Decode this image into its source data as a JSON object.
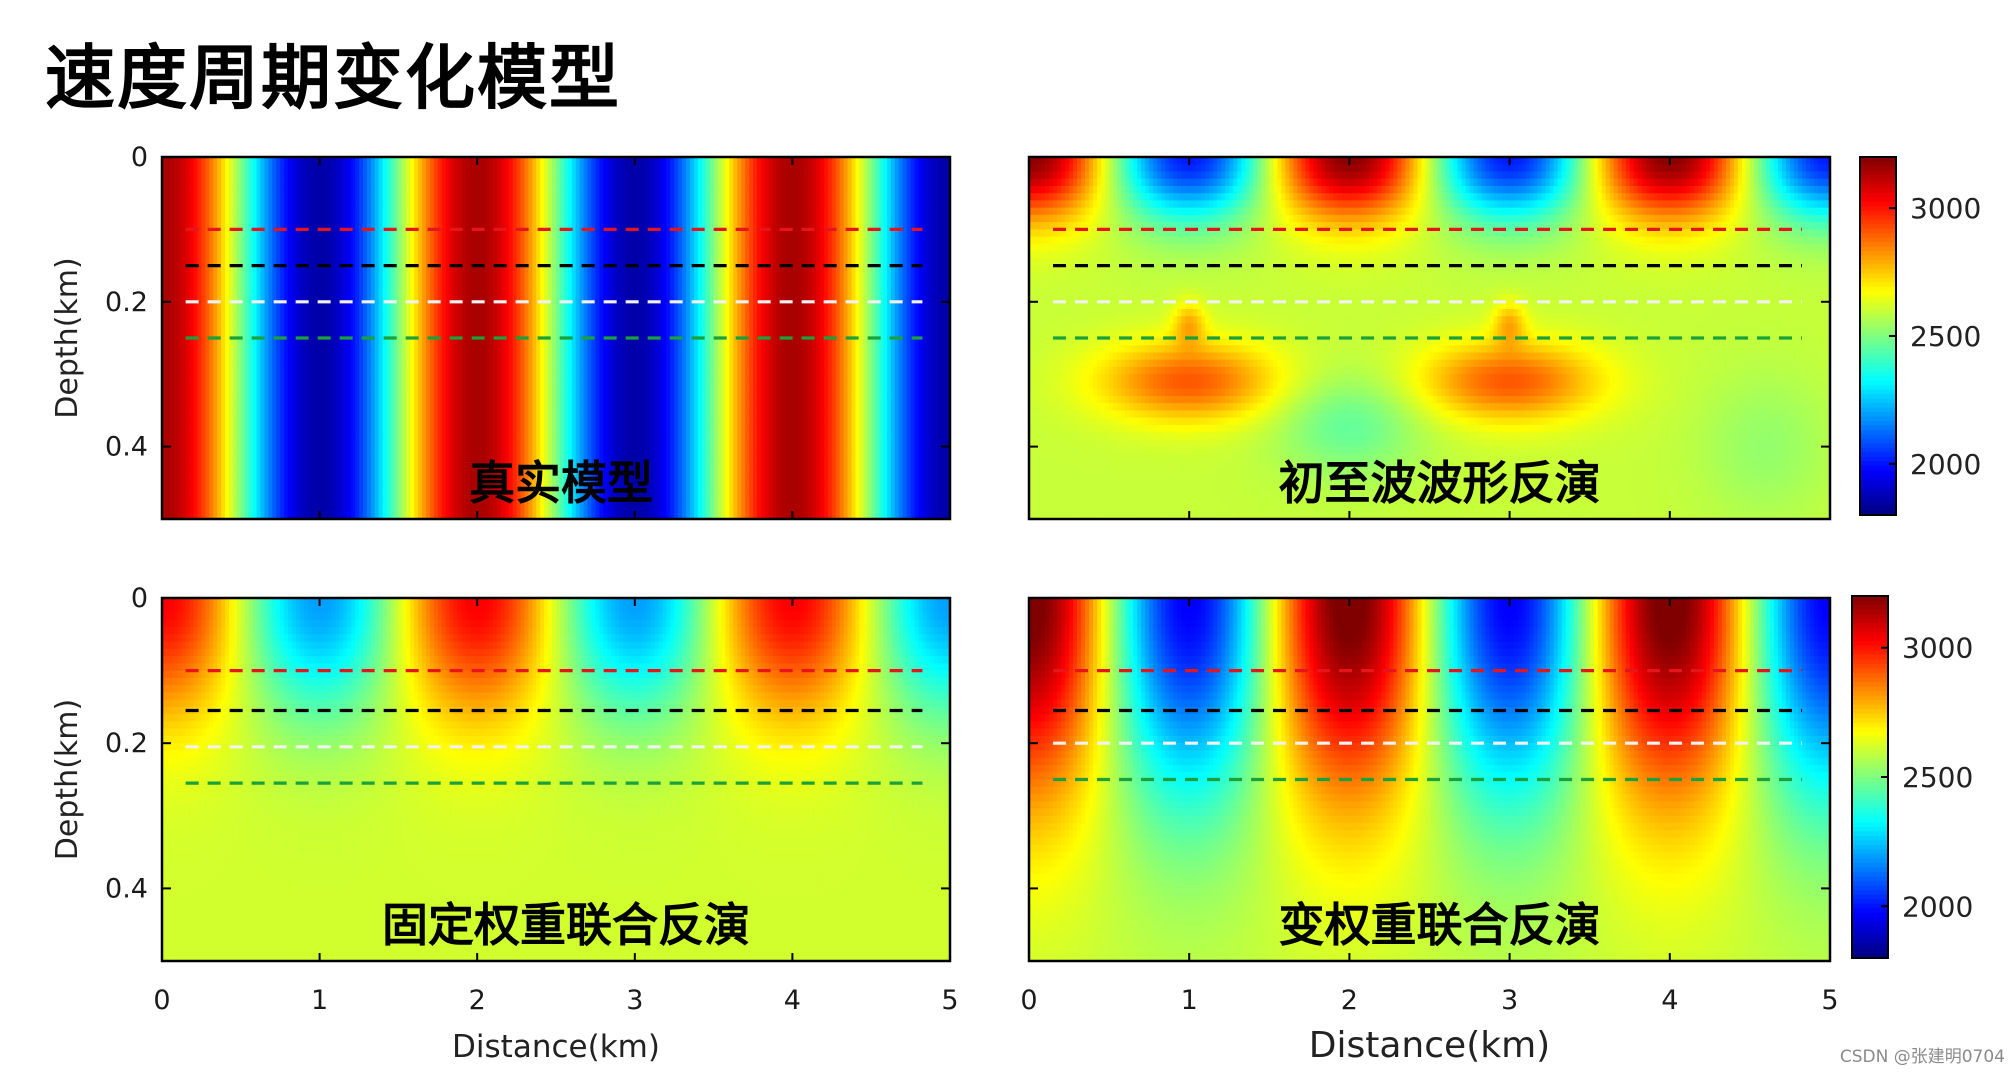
{
  "page": {
    "title": "速度周期变化模型",
    "watermark": "CSDN @张建明0704"
  },
  "chart_data": [
    {
      "type": "heatmap",
      "panel_label": "真实模型",
      "xlabel": "",
      "ylabel": "Depth(km)",
      "xlim": [
        0,
        5
      ],
      "ylim": [
        0.5,
        0
      ],
      "xticks": [],
      "yticks": [
        0,
        0.2,
        0.4
      ],
      "ytick_labels": [
        "0",
        "0.2",
        "0.4"
      ],
      "pattern": "vertical-stripes",
      "period_km": 2,
      "velocity_range": [
        1800,
        3200
      ],
      "reference_lines": [
        {
          "depth": 0.1,
          "color": "#e8141b"
        },
        {
          "depth": 0.15,
          "color": "#000000"
        },
        {
          "depth": 0.2,
          "color": "#f2f2f2"
        },
        {
          "depth": 0.25,
          "color": "#1aa13a"
        }
      ]
    },
    {
      "type": "heatmap",
      "panel_label": "初至波波形反演",
      "xlabel": "",
      "ylabel": "",
      "xlim": [
        0,
        5
      ],
      "ylim": [
        0.5,
        0
      ],
      "xticks": [],
      "yticks": [],
      "pattern": "shallow-recovery",
      "velocity_range": [
        1800,
        3200
      ],
      "colorbar": {
        "ticks": [
          3000,
          2500,
          2000
        ],
        "range": [
          1800,
          3200
        ]
      },
      "reference_lines": [
        {
          "depth": 0.1,
          "color": "#e8141b"
        },
        {
          "depth": 0.15,
          "color": "#000000"
        },
        {
          "depth": 0.2,
          "color": "#f2f2f2"
        },
        {
          "depth": 0.25,
          "color": "#1aa13a"
        }
      ]
    },
    {
      "type": "heatmap",
      "panel_label": "固定权重联合反演",
      "xlabel": "Distance(km)",
      "ylabel": "Depth(km)",
      "xlim": [
        0,
        5
      ],
      "ylim": [
        0.5,
        0
      ],
      "xticks": [
        0,
        1,
        2,
        3,
        4,
        5
      ],
      "xtick_labels": [
        "0",
        "1",
        "2",
        "3",
        "4",
        "5"
      ],
      "yticks": [
        0,
        0.2,
        0.4
      ],
      "ytick_labels": [
        "0",
        "0.2",
        "0.4"
      ],
      "pattern": "weak-recovery",
      "velocity_range": [
        1800,
        3200
      ],
      "reference_lines": [
        {
          "depth": 0.1,
          "color": "#e8141b"
        },
        {
          "depth": 0.155,
          "color": "#000000"
        },
        {
          "depth": 0.205,
          "color": "#f2f2f2"
        },
        {
          "depth": 0.255,
          "color": "#1aa13a"
        }
      ]
    },
    {
      "type": "heatmap",
      "panel_label": "变权重联合反演",
      "xlabel": "Distance(km)",
      "ylabel": "",
      "xlim": [
        0,
        5
      ],
      "ylim": [
        0.5,
        0
      ],
      "xticks": [
        0,
        1,
        2,
        3,
        4,
        5
      ],
      "xtick_labels": [
        "0",
        "1",
        "2",
        "3",
        "4",
        "5"
      ],
      "yticks": [],
      "pattern": "strong-recovery",
      "velocity_range": [
        1800,
        3200
      ],
      "colorbar": {
        "ticks": [
          3000,
          2500,
          2000
        ],
        "range": [
          1800,
          3200
        ]
      },
      "reference_lines": [
        {
          "depth": 0.1,
          "color": "#e8141b"
        },
        {
          "depth": 0.155,
          "color": "#000000"
        },
        {
          "depth": 0.2,
          "color": "#f2f2f2"
        },
        {
          "depth": 0.25,
          "color": "#1aa13a"
        }
      ]
    }
  ]
}
